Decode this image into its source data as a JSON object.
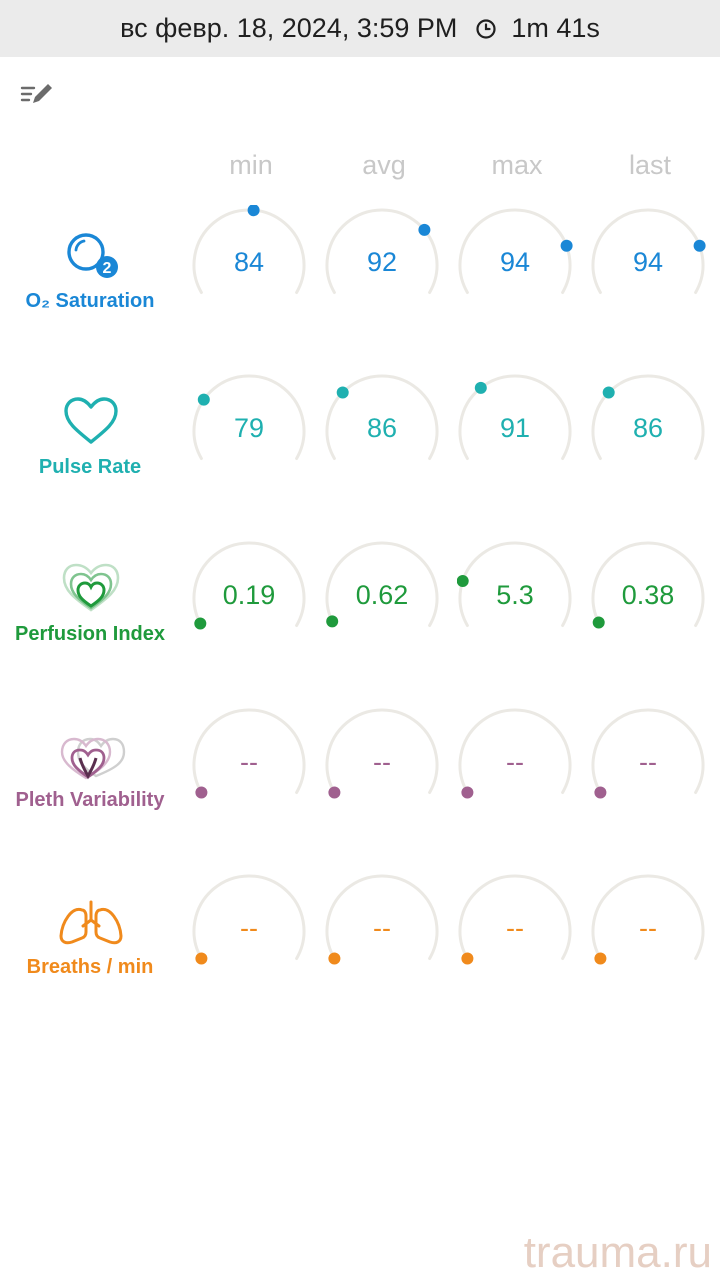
{
  "status_bar": {
    "date_time": "вс февр. 18, 2024, 3:59 PM",
    "duration": "1m 41s",
    "clock_icon": "clock-icon"
  },
  "toolbar": {
    "edit_icon": "edit-list-icon"
  },
  "columns": [
    "min",
    "avg",
    "max",
    "last"
  ],
  "colors": {
    "o2": "#1a87d6",
    "pulse": "#1fb0b0",
    "perfusion": "#1f9a3c",
    "pleth": "#a0608f",
    "breaths": "#f08a1c",
    "track": "#ebe9e4",
    "header": "#c8c8c8"
  },
  "metrics": [
    {
      "key": "o2",
      "label": "O₂ Saturation",
      "icon": "o2-saturation-icon",
      "color": "#1a87d6",
      "values": [
        "84",
        "92",
        "94",
        "94"
      ],
      "levels": [
        0.52,
        0.71,
        0.79,
        0.79
      ]
    },
    {
      "key": "pulse",
      "label": "Pulse Rate",
      "icon": "heart-icon",
      "color": "#1fb0b0",
      "values": [
        "79",
        "86",
        "91",
        "86"
      ],
      "levels": [
        0.27,
        0.31,
        0.34,
        0.31
      ]
    },
    {
      "key": "perfusion",
      "label": "Perfusion Index",
      "icon": "perfusion-hearts-icon",
      "color": "#1f9a3c",
      "values": [
        "0.19",
        "0.62",
        "5.3",
        "0.38"
      ],
      "levels": [
        0.01,
        0.02,
        0.2,
        0.015
      ]
    },
    {
      "key": "pleth",
      "label": "Pleth Variability",
      "icon": "pleth-variability-icon",
      "color": "#a0608f",
      "values": [
        "--",
        "--",
        "--",
        "--"
      ],
      "levels": [
        0,
        0,
        0,
        0
      ]
    },
    {
      "key": "breaths",
      "label": "Breaths / min",
      "icon": "lungs-icon",
      "color": "#f08a1c",
      "values": [
        "--",
        "--",
        "--",
        "--"
      ],
      "levels": [
        0,
        0,
        0,
        0
      ]
    }
  ],
  "watermark": "trauma.ru"
}
